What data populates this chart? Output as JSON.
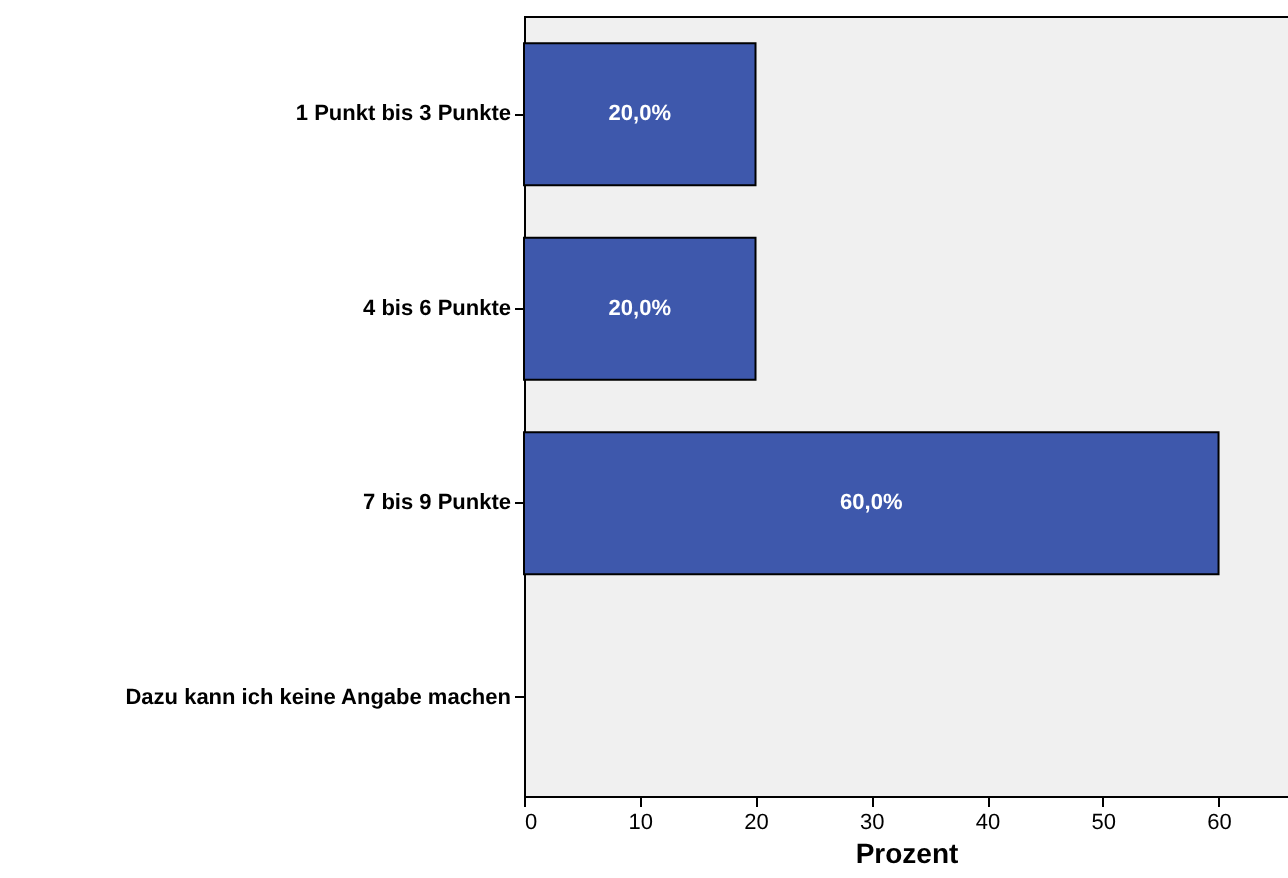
{
  "chart_data": {
    "type": "bar",
    "orientation": "horizontal",
    "xlabel": "Prozent",
    "categories": [
      "1 Punkt bis 3 Punkte",
      "4 bis 6 Punkte",
      "7 bis 9 Punkte",
      "Dazu kann ich keine Angabe machen"
    ],
    "values": [
      20,
      20,
      60,
      0
    ],
    "color": "#3e58ac",
    "value_labels": [
      "20,0%",
      "20,0%",
      "60,0%",
      null
    ],
    "xlim": [
      0,
      66
    ],
    "xticks": [
      0,
      10,
      20,
      30,
      40,
      50,
      60
    ],
    "grid": false
  }
}
